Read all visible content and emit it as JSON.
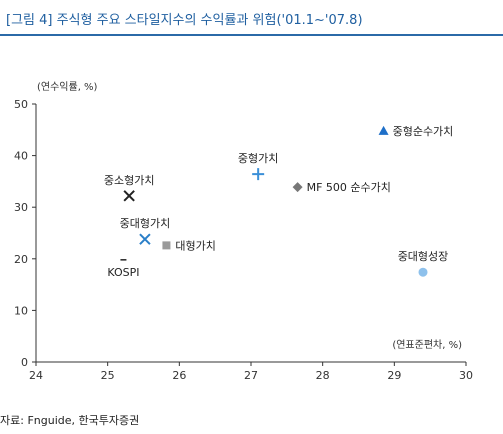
{
  "figure": {
    "title": "[그림 4] 주식형 주요 스타일지수의 수익률과 위험('01.1~'07.8)",
    "source": "자료: Fnguide, 한국투자증권"
  },
  "chart_data": {
    "type": "scatter",
    "title": "",
    "xlabel": "(연표준편차, %)",
    "ylabel": "(연수익률, %)",
    "xlim": [
      24,
      30
    ],
    "ylim": [
      0,
      50
    ],
    "xticks": [
      "24",
      "25",
      "26",
      "27",
      "28",
      "29",
      "30"
    ],
    "yticks": [
      "0",
      "10",
      "20",
      "30",
      "40",
      "50"
    ],
    "grid": false,
    "legend": "none",
    "points": [
      {
        "label": "중형순수가치",
        "x": 28.85,
        "y": 44.8,
        "marker": "triangle",
        "color": "#1e6fc8",
        "label_pos": "right"
      },
      {
        "label": "중형가치",
        "x": 27.1,
        "y": 36.4,
        "marker": "plus",
        "color": "#3a8fd8",
        "label_pos": "top"
      },
      {
        "label": "MF 500 순수가치",
        "x": 27.65,
        "y": 33.9,
        "marker": "diamond",
        "color": "#777777",
        "label_pos": "right"
      },
      {
        "label": "중소형가치",
        "x": 25.3,
        "y": 32.2,
        "marker": "x",
        "color": "#222222",
        "label_pos": "top"
      },
      {
        "label": "중대형가치",
        "x": 25.52,
        "y": 23.8,
        "marker": "x",
        "color": "#2a7fc8",
        "label_pos": "top"
      },
      {
        "label": "대형가치",
        "x": 25.82,
        "y": 22.6,
        "marker": "square",
        "color": "#9a9a9a",
        "label_pos": "right"
      },
      {
        "label": "KOSPI",
        "x": 25.22,
        "y": 19.8,
        "marker": "dash",
        "color": "#222222",
        "label_pos": "bottom"
      },
      {
        "label": "중대형성장",
        "x": 29.4,
        "y": 17.4,
        "marker": "circle",
        "color": "#8ec1ec",
        "label_pos": "top"
      }
    ]
  }
}
